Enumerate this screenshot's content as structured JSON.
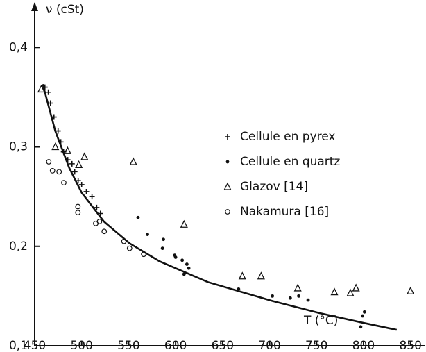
{
  "chart_data": {
    "type": "scatter",
    "y_label": "ν (cSt)",
    "x_label": "T (°C)",
    "xlim": [
      450,
      865
    ],
    "ylim": [
      0.1,
      0.44
    ],
    "xticks": [
      450,
      500,
      550,
      600,
      650,
      700,
      750,
      800,
      850
    ],
    "yticks": [
      {
        "value": 0.1,
        "label": "0,1"
      },
      {
        "value": 0.2,
        "label": "0,2"
      },
      {
        "value": 0.3,
        "label": "0,3"
      },
      {
        "value": 0.4,
        "label": "0,4"
      }
    ],
    "series": [
      {
        "color": "#111111",
        "marker": "line",
        "x": [
          458.6,
          471.9,
          486.7,
          500,
          523.6,
          551,
          582.7,
          634.4,
          703.1,
          752.6,
          799.9,
          835.3
        ],
        "values": [
          0.363,
          0.316,
          0.279,
          0.254,
          0.225,
          0.203,
          0.185,
          0.164,
          0.145,
          0.133,
          0.123,
          0.116
        ]
      },
      {
        "name": "Cellule en pyrex",
        "color": "#111111",
        "marker": "plus",
        "x": [
          460.9,
          464.5,
          466.8,
          470.5,
          474.9,
          477.8,
          480.8,
          485.2,
          489.7,
          492.6,
          496.3,
          500,
          505,
          511,
          516,
          520
        ],
        "values": [
          0.36,
          0.355,
          0.344,
          0.33,
          0.316,
          0.305,
          0.295,
          0.287,
          0.283,
          0.275,
          0.266,
          0.262,
          0.255,
          0.25,
          0.239,
          0.233
        ]
      },
      {
        "name": "Cellule en quartz",
        "color": "#111111",
        "marker": "dot",
        "x": [
          560,
          570,
          587,
          586,
          599,
          600,
          607,
          609,
          612,
          614,
          667,
          703,
          722,
          731,
          741,
          797,
          799,
          801
        ],
        "values": [
          0.229,
          0.212,
          0.207,
          0.198,
          0.191,
          0.189,
          0.186,
          0.172,
          0.182,
          0.178,
          0.157,
          0.15,
          0.148,
          0.15,
          0.146,
          0.119,
          0.13,
          0.134
        ]
      },
      {
        "name": "Glazov  [14]",
        "color": "#111111",
        "marker": "triangle",
        "x": [
          457,
          472,
          485,
          497,
          503,
          555,
          609,
          671,
          691,
          730,
          769,
          786,
          792,
          850
        ],
        "values": [
          0.358,
          0.3,
          0.296,
          0.282,
          0.29,
          0.285,
          0.222,
          0.17,
          0.17,
          0.158,
          0.154,
          0.153,
          0.158,
          0.155
        ]
      },
      {
        "name": "Nakamura [16]",
        "color": "#111111",
        "marker": "circle",
        "x": [
          465,
          469,
          476,
          481,
          496,
          496,
          515,
          519,
          524,
          545,
          551,
          566
        ],
        "values": [
          0.285,
          0.276,
          0.275,
          0.264,
          0.24,
          0.234,
          0.223,
          0.225,
          0.215,
          0.205,
          0.198,
          0.192
        ]
      }
    ]
  }
}
